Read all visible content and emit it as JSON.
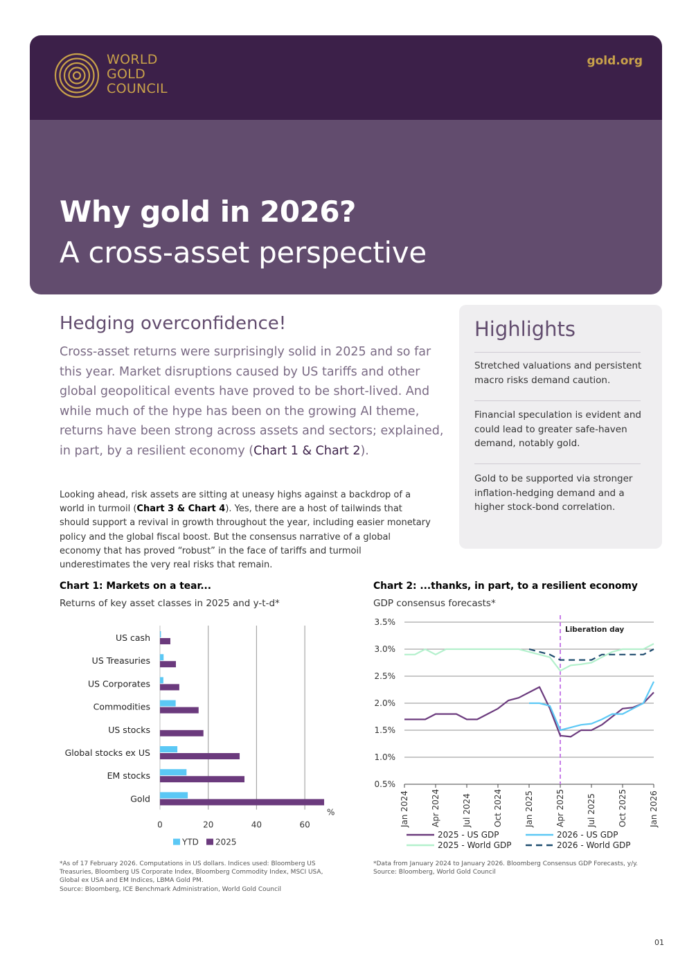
{
  "header": {
    "logo_lines": [
      "WORLD",
      "GOLD",
      "COUNCIL"
    ],
    "site": "gold.org",
    "title": "Why gold in 2026?",
    "subtitle": "A cross-asset perspective"
  },
  "main": {
    "heading": "Hedging overconfidence!",
    "lead_text": "Cross-asset returns were surprisingly solid in 2025 and so far this year. Market disruptions caused by US tariffs and other global geopolitical events have proved to be short-lived. And while much of the hype has been on the growing AI theme, returns have been strong across assets and sectors; explained, in part, by a resilient economy (",
    "lead_ref": "Chart 1 & Chart 2",
    "lead_end": ").",
    "body_start": "Looking ahead, risk assets are sitting at uneasy highs against a backdrop of a world in turmoil (",
    "body_ref": "Chart 3 & Chart 4",
    "body_end": "). Yes, there are a host of tailwinds that should support a revival in growth throughout the year, including easier monetary policy and the global fiscal boost. But the consensus narrative of a global economy that has proved “robust” in the face of tariffs and turmoil underestimates the very real risks that remain."
  },
  "highlights": {
    "title": "Highlights",
    "items": [
      "Stretched valuations and persistent macro risks demand caution.",
      "Financial speculation is evident and could lead to greater safe-haven demand, notably gold.",
      "Gold to be supported via stronger inflation-hedging demand and a higher stock-bond correlation."
    ]
  },
  "chart1": {
    "title": "Chart 1: Markets on a tear...",
    "subtitle": "Returns of key asset classes in 2025 and y-t-d*",
    "unit": "%",
    "footnote": "*As of 17 February 2026. Computations in US dollars. Indices used: Bloomberg US Treasuries, Bloomberg US Corporate Index, Bloomberg Commodity Index, MSCI USA, Global ex USA and EM Indices, LBMA Gold PM.",
    "source": "Source: Bloomberg, ICE Benchmark Administration, World Gold Council"
  },
  "chart2": {
    "title": "Chart 2: ...thanks, in part, to a resilient economy",
    "subtitle": "GDP consensus forecasts*",
    "annotation": "Liberation day",
    "footnote": "*Data from January 2024 to January 2026. Bloomberg Consensus GDP Forecasts, y/y.",
    "source": "Source: Bloomberg, World Gold Council"
  },
  "chart_data": [
    {
      "type": "bar",
      "orientation": "horizontal",
      "categories": [
        "US cash",
        "US Treasuries",
        "US Corporates",
        "Commodities",
        "US stocks",
        "Global stocks ex US",
        "EM stocks",
        "Gold"
      ],
      "series": [
        {
          "name": "YTD",
          "color": "#5bc8f5",
          "values": [
            0.4,
            1.5,
            1.4,
            6.5,
            0,
            7.2,
            11,
            11.5
          ]
        },
        {
          "name": "2025",
          "color": "#6b3a7d",
          "values": [
            4.3,
            6.6,
            8,
            16,
            18,
            33,
            35,
            68
          ]
        }
      ],
      "xlim": [
        0,
        70
      ],
      "xticks": [
        "0",
        "20",
        "40",
        "60"
      ],
      "xticks_values": [
        0,
        20,
        40,
        60
      ],
      "legend": "bottom",
      "grid": true
    },
    {
      "type": "line",
      "x": [
        "Jan 2024",
        "Feb 2024",
        "Mar 2024",
        "Apr 2024",
        "May 2024",
        "Jun 2024",
        "Jul 2024",
        "Aug 2024",
        "Sep 2024",
        "Oct 2024",
        "Nov 2024",
        "Dec 2024",
        "Jan 2025",
        "Feb 2025",
        "Mar 2025",
        "Apr 2025",
        "May 2025",
        "Jun 2025",
        "Jul 2025",
        "Aug 2025",
        "Sep 2025",
        "Oct 2025",
        "Nov 2025",
        "Dec 2025",
        "Jan 2026"
      ],
      "xticks": [
        "Jan 2024",
        "Apr 2024",
        "Jul 2024",
        "Oct 2024",
        "Jan 2025",
        "Apr 2025",
        "Jul 2025",
        "Oct 2025",
        "Jan 2026"
      ],
      "ylim": [
        0.5,
        3.5
      ],
      "yticks": [
        "0.5%",
        "1.0%",
        "1.5%",
        "2.0%",
        "2.5%",
        "3.0%",
        "3.5%"
      ],
      "yticks_values": [
        0.5,
        1.0,
        1.5,
        2.0,
        2.5,
        3.0,
        3.5
      ],
      "event": {
        "x": "Apr 2025",
        "label": "Liberation day",
        "color": "#c77de8"
      },
      "series": [
        {
          "name": "2025 - US GDP",
          "color": "#6b3a7d",
          "dash": "",
          "values": [
            1.7,
            1.7,
            1.7,
            1.8,
            1.8,
            1.8,
            1.7,
            1.7,
            1.8,
            1.9,
            2.05,
            2.1,
            2.2,
            2.3,
            1.9,
            1.4,
            1.38,
            1.5,
            1.5,
            1.6,
            1.75,
            1.9,
            1.92,
            2.0,
            2.2
          ]
        },
        {
          "name": "2026 - US GDP",
          "color": "#5bc8f5",
          "dash": "",
          "values": [
            null,
            null,
            null,
            null,
            null,
            null,
            null,
            null,
            null,
            null,
            null,
            null,
            2.0,
            2.0,
            1.95,
            1.5,
            1.55,
            1.6,
            1.62,
            1.7,
            1.8,
            1.8,
            1.9,
            2.0,
            2.4
          ]
        },
        {
          "name": "2025 - World GDP",
          "color": "#b3f0cc",
          "dash": "",
          "values": [
            2.9,
            2.9,
            3.0,
            2.9,
            3.0,
            3.0,
            3.0,
            3.0,
            3.0,
            3.0,
            3.0,
            3.0,
            2.95,
            2.9,
            2.85,
            2.6,
            2.7,
            2.72,
            2.75,
            2.85,
            2.95,
            3.0,
            3.0,
            3.0,
            3.1
          ]
        },
        {
          "name": "2026 - World GDP",
          "color": "#1e4c6e",
          "dash": "9,6",
          "values": [
            null,
            null,
            null,
            null,
            null,
            null,
            null,
            null,
            null,
            null,
            null,
            null,
            3.0,
            2.95,
            2.9,
            2.8,
            2.8,
            2.8,
            2.8,
            2.9,
            2.9,
            2.9,
            2.9,
            2.9,
            3.0
          ]
        }
      ],
      "legend": "bottom",
      "grid": true
    }
  ],
  "page_number": "01"
}
